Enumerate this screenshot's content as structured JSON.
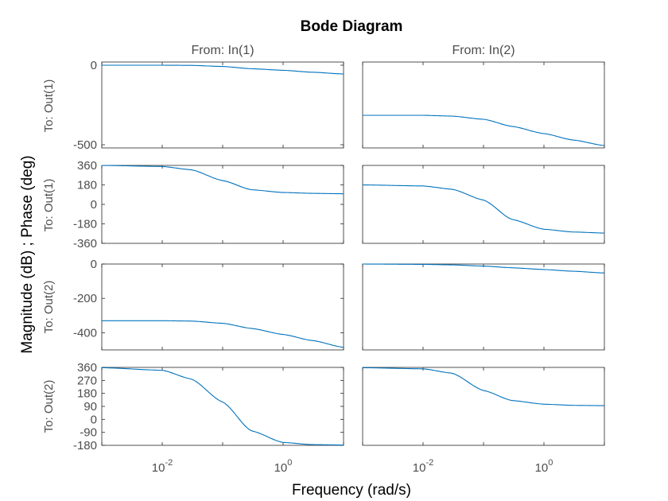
{
  "chart_data": {
    "type": "line",
    "title": "Bode Diagram",
    "xlabel": "Frequency  (rad/s)",
    "ylabel": "Magnitude (dB) ; Phase (deg)",
    "x_scale": "log",
    "xlim": [
      0.001,
      10
    ],
    "x_tick_labels": [
      {
        "base": "10",
        "exp": "-2",
        "value": 0.01
      },
      {
        "base": "10",
        "exp": "0",
        "value": 1
      }
    ],
    "columns": [
      "From: In(1)",
      "From: In(2)"
    ],
    "rows": [
      "To: Out(1)",
      "To: Out(1)",
      "To: Out(2)",
      "To: Out(2)"
    ],
    "panels": [
      {
        "row": 0,
        "col": 0,
        "kind": "magnitude",
        "ylim": [
          -520,
          20
        ],
        "yticks": [
          {
            "v": 0,
            "t": "0"
          },
          {
            "v": -500,
            "t": "-500"
          }
        ],
        "x": [
          0.001,
          0.01,
          0.03,
          0.1,
          0.3,
          1,
          3,
          10
        ],
        "y": [
          0,
          0,
          -1,
          -8,
          -22,
          -32,
          -44,
          -55
        ]
      },
      {
        "row": 0,
        "col": 1,
        "kind": "magnitude",
        "ylim": [
          -520,
          20
        ],
        "yticks": [],
        "x": [
          0.001,
          0.01,
          0.03,
          0.1,
          0.3,
          1,
          3,
          10
        ],
        "y": [
          -315,
          -315,
          -320,
          -340,
          -385,
          -430,
          -470,
          -505
        ]
      },
      {
        "row": 1,
        "col": 0,
        "kind": "phase",
        "ylim": [
          -360,
          360
        ],
        "yticks": [
          {
            "v": 360,
            "t": "360"
          },
          {
            "v": 180,
            "t": "180"
          },
          {
            "v": 0,
            "t": "0"
          },
          {
            "v": -180,
            "t": "-180"
          },
          {
            "v": -360,
            "t": "-360"
          }
        ],
        "x": [
          0.001,
          0.01,
          0.03,
          0.1,
          0.3,
          1,
          3,
          10
        ],
        "y": [
          360,
          350,
          320,
          220,
          135,
          110,
          102,
          98
        ]
      },
      {
        "row": 1,
        "col": 1,
        "kind": "phase",
        "ylim": [
          -360,
          360
        ],
        "yticks": [],
        "x": [
          0.001,
          0.01,
          0.03,
          0.1,
          0.3,
          1,
          3,
          10
        ],
        "y": [
          180,
          170,
          140,
          40,
          -140,
          -230,
          -255,
          -265
        ]
      },
      {
        "row": 2,
        "col": 0,
        "kind": "magnitude",
        "ylim": [
          -500,
          0
        ],
        "yticks": [
          {
            "v": 0,
            "t": "0"
          },
          {
            "v": -200,
            "t": "-200"
          },
          {
            "v": -400,
            "t": "-400"
          }
        ],
        "x": [
          0.001,
          0.01,
          0.03,
          0.1,
          0.3,
          1,
          3,
          10
        ],
        "y": [
          -330,
          -330,
          -332,
          -345,
          -375,
          -410,
          -445,
          -485
        ]
      },
      {
        "row": 2,
        "col": 1,
        "kind": "magnitude",
        "ylim": [
          -500,
          0
        ],
        "yticks": [],
        "x": [
          0.001,
          0.01,
          0.03,
          0.1,
          0.3,
          1,
          3,
          10
        ],
        "y": [
          0,
          -2,
          -5,
          -12,
          -22,
          -32,
          -42,
          -52
        ]
      },
      {
        "row": 3,
        "col": 0,
        "kind": "phase",
        "ylim": [
          -180,
          360
        ],
        "yticks": [
          {
            "v": 360,
            "t": "360"
          },
          {
            "v": 270,
            "t": "270"
          },
          {
            "v": 180,
            "t": "180"
          },
          {
            "v": 90,
            "t": "90"
          },
          {
            "v": 0,
            "t": "0"
          },
          {
            "v": -90,
            "t": "-90"
          },
          {
            "v": -180,
            "t": "-180"
          }
        ],
        "x": [
          0.001,
          0.01,
          0.03,
          0.1,
          0.3,
          1,
          3,
          10
        ],
        "y": [
          358,
          340,
          280,
          120,
          -80,
          -160,
          -175,
          -178
        ]
      },
      {
        "row": 3,
        "col": 1,
        "kind": "phase",
        "ylim": [
          -180,
          360
        ],
        "yticks": [],
        "x": [
          0.001,
          0.01,
          0.03,
          0.1,
          0.3,
          1,
          3,
          10
        ],
        "y": [
          358,
          350,
          320,
          200,
          130,
          105,
          97,
          95
        ]
      }
    ],
    "grid": false,
    "line_color": "#0072bd"
  }
}
